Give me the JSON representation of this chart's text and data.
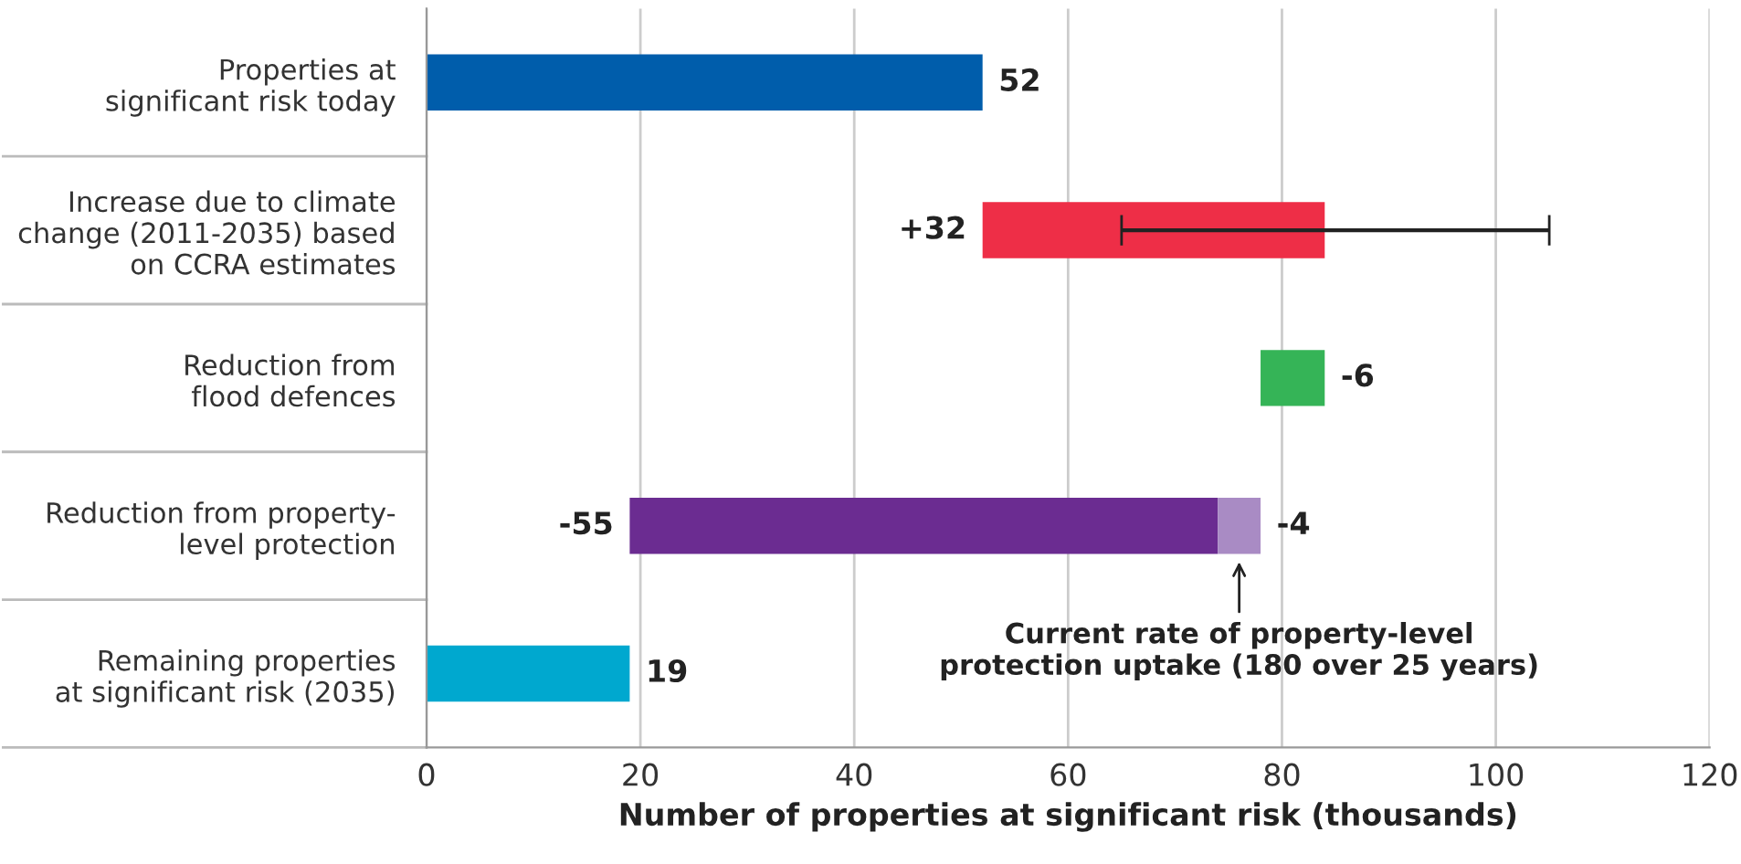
{
  "chart_data": {
    "type": "bar",
    "orientation": "horizontal",
    "categories": [
      "Properties at\nsignificant risk today",
      "Increase due to climate\nchange (2011-2035) based\non CCRA estimates",
      "Reduction from\nflood defences",
      "Reduction from property-\nlevel protection",
      "Remaining properties\nat significant risk (2035)"
    ],
    "series": [
      {
        "values": [
          52,
          32,
          -6,
          -55,
          19
        ],
        "base": [
          0,
          52,
          84,
          74,
          0
        ],
        "colors": [
          "#005dab",
          "#ee2e47",
          "#35b457",
          "#6b2c91",
          "#00a8cf"
        ],
        "value_labels": [
          "52",
          "+32",
          "-6",
          "-55",
          "19"
        ],
        "errors": [
          null,
          [
            65,
            105
          ],
          null,
          null,
          null
        ]
      },
      {
        "values": [
          null,
          null,
          null,
          -4,
          null
        ],
        "base": [
          null,
          null,
          null,
          78,
          null
        ],
        "color": "#a98bc4",
        "value_labels": [
          null,
          null,
          null,
          "-4",
          null
        ]
      }
    ],
    "xlim": [
      0,
      120
    ],
    "xticks": [
      0,
      20,
      40,
      60,
      80,
      100,
      120
    ],
    "xlabel": "Number of properties at significant risk (thousands)",
    "grid": "x",
    "annotations": [
      "Current rate of property-level\nprotection uptake (180 over 25 years)"
    ]
  }
}
